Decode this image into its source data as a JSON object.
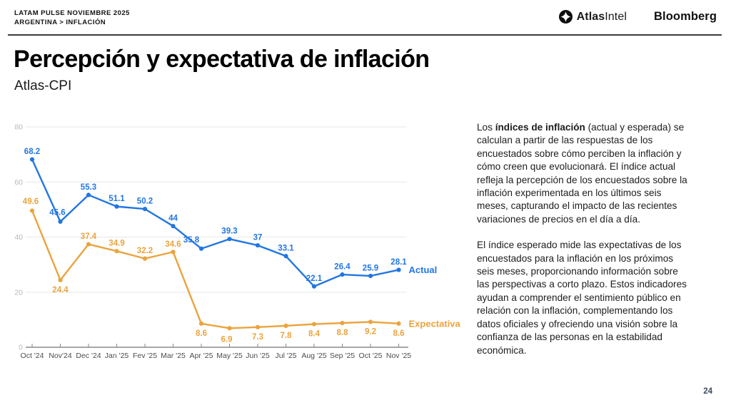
{
  "header": {
    "line1": "LATAM PULSE NOVIEMBRE 2025",
    "line2": "ARGENTINA > INFLACIÓN",
    "logo_atlas_bold": "Atlas",
    "logo_atlas_light": "Intel",
    "logo_bloomberg": "Bloomberg"
  },
  "title": "Percepción y expectativa de inflación",
  "subtitle": "Atlas-CPI",
  "page_number": "24",
  "description": {
    "p1_prefix": "Los ",
    "p1_bold": "índices de inflación",
    "p1_rest": " (actual y esperada) se calculan a partir de las respuestas de los encuestados sobre cómo perciben la inflación y cómo creen que evolucionará. El índice actual refleja la percepción de los encuestados sobre la inflación experimentada en los últimos seis meses, capturando el impacto de las recientes variaciones de precios en el día a día.",
    "p2": "El índice esperado mide las expectativas de los encuestados para la inflación en los próximos seis meses, proporcionando información sobre las perspectivas a corto plazo. Estos indicadores ayudan a comprender el sentimiento público en relación con la inflación, complementando los datos oficiales y ofreciendo una visión sobre la confianza de las personas en la estabilidad económica."
  },
  "chart_data": {
    "type": "line",
    "title": "Atlas-CPI: percepción y expectativa de inflación (Argentina)",
    "categories": [
      "Oct '24",
      "Nov'24",
      "Dec '24",
      "Jan '25",
      "Fev '25",
      "Mar '25",
      "Apr '25",
      "May '25",
      "Jun '25",
      "Jul '25",
      "Aug '25",
      "Sep '25",
      "Oct '25",
      "Nov '25"
    ],
    "series": [
      {
        "name": "Actual",
        "color": "#2276E3",
        "values": [
          68.2,
          45.6,
          55.3,
          51.1,
          50.2,
          44,
          35.8,
          39.3,
          37,
          33.1,
          22.1,
          26.4,
          25.9,
          28.1
        ],
        "labels": [
          "68.2",
          "45.6",
          "55.3",
          "51.1",
          "50.2",
          "44",
          "35.8",
          "39.3",
          "37",
          "33.1",
          "22.1",
          "26.4",
          "25.9",
          "28.1"
        ],
        "label_sides": [
          "above",
          "above",
          "above",
          "above",
          "above",
          "above",
          "above",
          "above",
          "above",
          "above",
          "above",
          "above",
          "above",
          "above"
        ],
        "label_offsets": {
          "1": [
            -4,
            -2
          ],
          "6": [
            -14,
            -1
          ]
        }
      },
      {
        "name": "Expectativa",
        "color": "#EBA33D",
        "values": [
          49.6,
          24.4,
          37.4,
          34.9,
          32.2,
          34.6,
          8.6,
          6.9,
          7.3,
          7.8,
          8.4,
          8.8,
          9.2,
          8.6
        ],
        "labels": [
          "49.6",
          "24.4",
          "37.4",
          "34.9",
          "32.2",
          "34.6",
          "8.6",
          "6.9",
          "7.3",
          "7.8",
          "8.4",
          "8.8",
          "9.2",
          "8.6"
        ],
        "label_sides": [
          "above",
          "below",
          "above",
          "above",
          "above",
          "above",
          "below",
          "below",
          "below",
          "below",
          "below",
          "below",
          "below",
          "below"
        ],
        "label_offsets": {
          "0": [
            -2,
            -2
          ],
          "7": [
            -4,
            2
          ]
        }
      }
    ],
    "ylim": [
      0,
      80
    ],
    "yticks": [
      0,
      20,
      40,
      60,
      80
    ],
    "grid": true,
    "legend_position": "right-of-last-point",
    "axis_colors": {
      "grid": "#efefef",
      "axis": "#8a8a8a",
      "y_labels": "#b9b9b9",
      "x_labels": "#4d4d4d"
    }
  }
}
